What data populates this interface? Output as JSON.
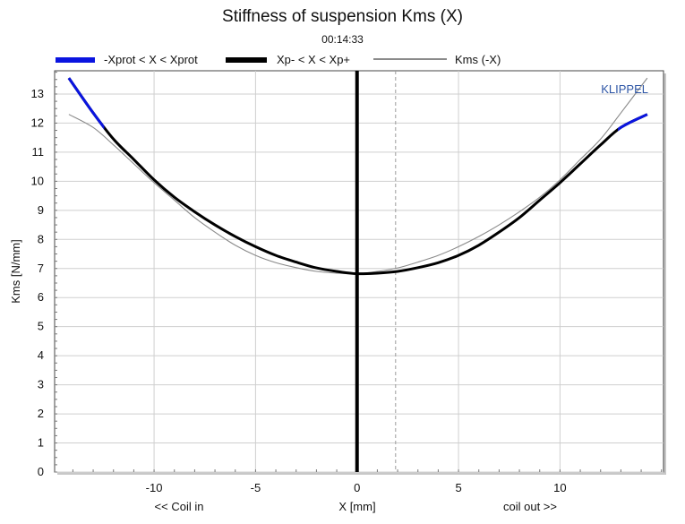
{
  "chart_data": {
    "type": "line",
    "title": "Stiffness of suspension Kms (X)",
    "timestamp": "00:14:33",
    "xlabel": "X [mm]",
    "ylabel": "Kms [N/mm]",
    "xlim": [
      -14.9,
      15.1
    ],
    "ylim": [
      0,
      13.8
    ],
    "xticks": [
      -10,
      -5,
      0,
      5,
      10
    ],
    "yticks": [
      0,
      1,
      2,
      3,
      4,
      5,
      6,
      7,
      8,
      9,
      10,
      11,
      12,
      13
    ],
    "xtick_labels": [
      "-10",
      "-5",
      "0",
      "5",
      "10"
    ],
    "ytick_labels": [
      "0",
      "1",
      "2",
      "3",
      "4",
      "5",
      "6",
      "7",
      "8",
      "9",
      "10",
      "11",
      "12",
      "13"
    ],
    "x_annotations": {
      "left": "<< Coil in",
      "right": "coil out >>"
    },
    "watermark": "KLIPPEL",
    "grid": true,
    "legend": [
      {
        "name": "-Xprot < X < Xprot",
        "color": "#0a14e0",
        "style": "thick"
      },
      {
        "name": "Xp- < X < Xp+",
        "color": "#000000",
        "style": "thick"
      },
      {
        "name": "Kms (-X)",
        "color": "#8a8a8a",
        "style": "thin"
      }
    ],
    "vertical_lines": [
      {
        "x": 0,
        "color": "#000000",
        "style": "solid"
      },
      {
        "x": 1.9,
        "color": "#9a9a9a",
        "style": "dashed"
      }
    ],
    "series": [
      {
        "name": "Kms (X)",
        "x": [
          -14.2,
          -13,
          -12,
          -11,
          -10,
          -9,
          -8,
          -7,
          -6,
          -5,
          -4,
          -3,
          -2,
          -1,
          0,
          1,
          2,
          3,
          4,
          5,
          6,
          7,
          8,
          9,
          10,
          11,
          12,
          13,
          14.3
        ],
        "y": [
          13.55,
          12.35,
          11.45,
          10.75,
          10.05,
          9.45,
          8.95,
          8.5,
          8.1,
          7.75,
          7.45,
          7.22,
          7.02,
          6.9,
          6.82,
          6.84,
          6.9,
          7.03,
          7.2,
          7.45,
          7.8,
          8.25,
          8.75,
          9.35,
          9.95,
          10.6,
          11.25,
          11.85,
          12.3
        ],
        "blue_ranges": [
          [
            -14.2,
            -12.5
          ],
          [
            12.9,
            14.3
          ]
        ]
      },
      {
        "name": "Kms (-X)",
        "x": [
          -14.2,
          -13,
          -12,
          -11,
          -10,
          -9,
          -8,
          -7,
          -6,
          -5,
          -4,
          -3,
          -2,
          -1,
          0,
          1,
          2,
          3,
          4,
          5,
          6,
          7,
          8,
          9,
          10,
          11,
          12,
          13,
          14.3
        ],
        "y": [
          12.3,
          11.85,
          11.25,
          10.6,
          9.95,
          9.35,
          8.75,
          8.25,
          7.8,
          7.45,
          7.2,
          7.03,
          6.9,
          6.84,
          6.82,
          6.9,
          7.02,
          7.22,
          7.45,
          7.75,
          8.1,
          8.5,
          8.95,
          9.45,
          10.05,
          10.75,
          11.45,
          12.35,
          13.55
        ]
      }
    ]
  }
}
